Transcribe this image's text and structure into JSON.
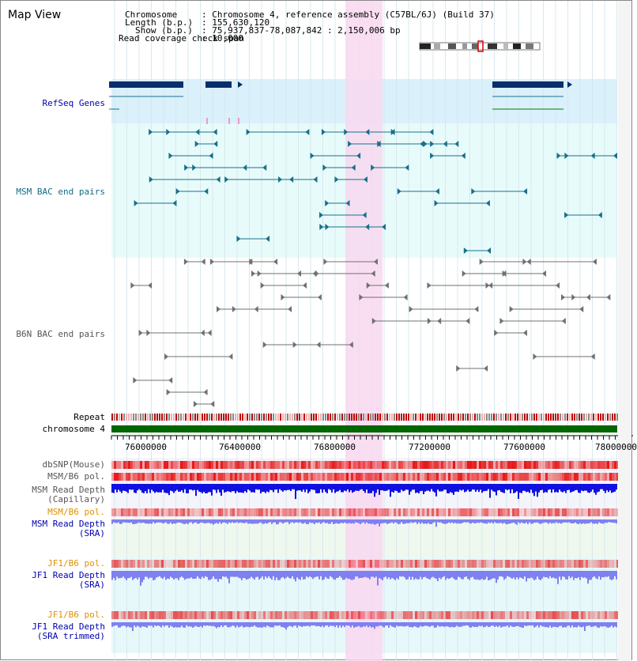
{
  "title": "Map View",
  "info": {
    "chromosome_label": "Chromosome",
    "chromosome_value": ": Chromosome 4, reference assembly (C57BL/6J) (Build 37)",
    "length_label": "Length (b.p.)",
    "length_value": ": 155,630,120",
    "show_label": "Show (b.p.)",
    "show_value": ": 75,937,837-78,087,842 : 2,150,006 bp",
    "coverage_label": "Read coverage check span",
    "coverage_value": ": 10,000"
  },
  "tracks": {
    "refseq": "RefSeq Genes",
    "msm_bac": "MSM BAC end pairs",
    "b6n_bac": "B6N BAC end pairs",
    "repeat": "Repeat",
    "chromosome": "chromosome 4",
    "dbsnp": "dbSNP(Mouse)",
    "msm_b6_pol": "MSM/B6 pol.",
    "msm_depth_cap_1": "MSM Read Depth",
    "msm_depth_cap_2": "(Capillary)",
    "msm_b6_pol_sra": "MSM/B6 pol.",
    "msm_depth_sra_1": "MSM Read Depth",
    "msm_depth_sra_2": "(SRA)",
    "jf1_b6_pol": "JF1/B6 pol.",
    "jf1_depth_1": "JF1 Read Depth",
    "jf1_depth_2": "(SRA)",
    "jf1_b6_pol_trim": "JF1/B6 pol.",
    "jf1_trim_1": "JF1 Read Depth",
    "jf1_trim_2": "(SRA trimmed)"
  },
  "axis": {
    "ticks": [
      "76000000",
      "76400000",
      "76800000",
      "77200000",
      "77600000",
      "78000000"
    ]
  },
  "colors": {
    "refseq_bg": "#daf0fb",
    "msm_bg": "#e8fbfb",
    "highlight": "#f8d8f0",
    "gene": "#062f6c",
    "msm_pair": "#17708a",
    "b6n_pair": "#707070",
    "chromosome": "#006600",
    "depth_blue": "#1010e0",
    "depth_light": "#8080f0",
    "label_blue": "#0000b0",
    "label_orange": "#e09000",
    "label_teal": "#106c84"
  }
}
